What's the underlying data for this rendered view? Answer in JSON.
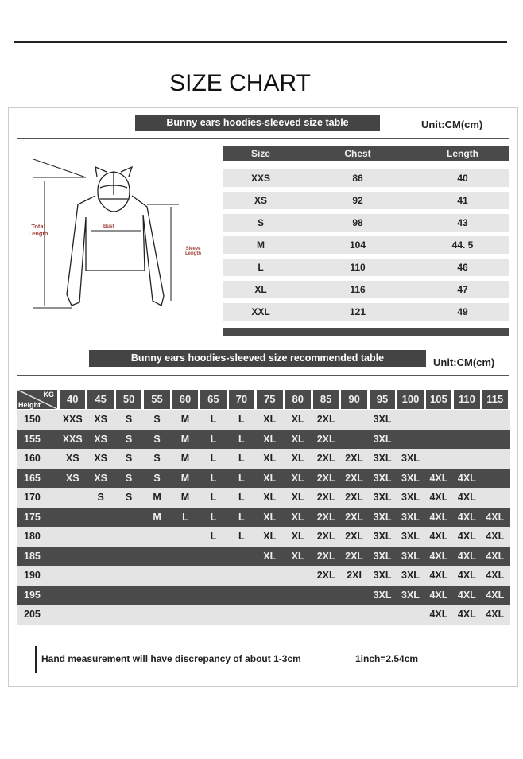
{
  "title": "SIZE CHART",
  "size_table": {
    "banner": "Bunny ears hoodies-sleeved size  table",
    "unit": "Unit:CM(cm)",
    "headers": [
      "Size",
      "Chest",
      "Length"
    ],
    "rows": [
      [
        "XXS",
        "86",
        "40"
      ],
      [
        "XS",
        "92",
        "41"
      ],
      [
        "S",
        "98",
        "43"
      ],
      [
        "M",
        "104",
        "44. 5"
      ],
      [
        "L",
        "110",
        "46"
      ],
      [
        "XL",
        "116",
        "47"
      ],
      [
        "XXL",
        "121",
        "49"
      ]
    ]
  },
  "diagram": {
    "total_length": "Total Length",
    "bust": "Bust",
    "sleeve_length": "Sleeve Length"
  },
  "recommended_table": {
    "banner": "Bunny ears hoodies-sleeved size recommended table",
    "unit": "Unit:CM(cm)",
    "corner_kg": "KG",
    "corner_height": "Height",
    "weights": [
      "40",
      "45",
      "50",
      "55",
      "60",
      "65",
      "70",
      "75",
      "80",
      "85",
      "90",
      "95",
      "100",
      "105",
      "110",
      "115"
    ],
    "rows": [
      {
        "height": "150",
        "sizes": [
          "XXS",
          "XS",
          "S",
          "S",
          "M",
          "L",
          "L",
          "XL",
          "XL",
          "2XL",
          "",
          "3XL",
          "",
          "",
          "",
          ""
        ]
      },
      {
        "height": "155",
        "sizes": [
          "XXS",
          "XS",
          "S",
          "S",
          "M",
          "L",
          "L",
          "XL",
          "XL",
          "2XL",
          "",
          "3XL",
          "",
          "",
          "",
          ""
        ]
      },
      {
        "height": "160",
        "sizes": [
          "XS",
          "XS",
          "S",
          "S",
          "M",
          "L",
          "L",
          "XL",
          "XL",
          "2XL",
          "2XL",
          "3XL",
          "3XL",
          "",
          "",
          ""
        ]
      },
      {
        "height": "165",
        "sizes": [
          "XS",
          "XS",
          "S",
          "S",
          "M",
          "L",
          "L",
          "XL",
          "XL",
          "2XL",
          "2XL",
          "3XL",
          "3XL",
          "4XL",
          "4XL",
          ""
        ]
      },
      {
        "height": "170",
        "sizes": [
          "",
          "S",
          "S",
          "M",
          "M",
          "L",
          "L",
          "XL",
          "XL",
          "2XL",
          "2XL",
          "3XL",
          "3XL",
          "4XL",
          "4XL",
          ""
        ]
      },
      {
        "height": "175",
        "sizes": [
          "",
          "",
          "",
          "M",
          "L",
          "L",
          "L",
          "XL",
          "XL",
          "2XL",
          "2XL",
          "3XL",
          "3XL",
          "4XL",
          "4XL",
          "4XL"
        ]
      },
      {
        "height": "180",
        "sizes": [
          "",
          "",
          "",
          "",
          "",
          "L",
          "L",
          "XL",
          "XL",
          "2XL",
          "2XL",
          "3XL",
          "3XL",
          "4XL",
          "4XL",
          "4XL"
        ]
      },
      {
        "height": "185",
        "sizes": [
          "",
          "",
          "",
          "",
          "",
          "",
          "",
          "XL",
          "XL",
          "2XL",
          "2XL",
          "3XL",
          "3XL",
          "4XL",
          "4XL",
          "4XL"
        ]
      },
      {
        "height": "190",
        "sizes": [
          "",
          "",
          "",
          "",
          "",
          "",
          "",
          "",
          "",
          "2XL",
          "2XI",
          "3XL",
          "3XL",
          "4XL",
          "4XL",
          "4XL"
        ]
      },
      {
        "height": "195",
        "sizes": [
          "",
          "",
          "",
          "",
          "",
          "",
          "",
          "",
          "",
          "",
          "",
          "3XL",
          "3XL",
          "4XL",
          "4XL",
          "4XL"
        ]
      },
      {
        "height": "205",
        "sizes": [
          "",
          "",
          "",
          "",
          "",
          "",
          "",
          "",
          "",
          "",
          "",
          "",
          "",
          "4XL",
          "4XL",
          "4XL"
        ]
      }
    ]
  },
  "footer": {
    "note": "Hand measurement will have discrepancy of about  1-3cm",
    "conversion": "1inch=2.54cm"
  },
  "colors": {
    "dark_band": "#4a4a4a",
    "light_band": "#e4e4e4",
    "label_red": "#a0463c"
  }
}
